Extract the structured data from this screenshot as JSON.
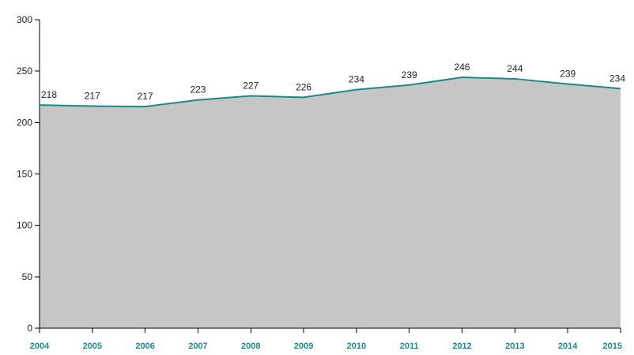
{
  "chart_data": {
    "type": "area",
    "categories": [
      "2004",
      "2005",
      "2006",
      "2007",
      "2008",
      "2009",
      "2010",
      "2011",
      "2012",
      "2013",
      "2014",
      "2015"
    ],
    "series": [
      {
        "values": [
          217,
          216,
          215.5,
          222,
          226,
          224.5,
          232,
          236.5,
          244,
          242.5,
          237.5,
          233
        ],
        "labels": [
          "218",
          "217",
          "217",
          "223",
          "227",
          "226",
          "234",
          "239",
          "246",
          "244",
          "239",
          "234"
        ]
      }
    ],
    "yticks": [
      "0",
      "50",
      "100",
      "150",
      "200",
      "250",
      "300"
    ],
    "ylim": [
      0,
      300
    ],
    "grid": false,
    "colors": {
      "area": "#c6c6c6",
      "line": "#1a8a8a",
      "xtick_label": "#1a8a8a",
      "axis": "#000000"
    }
  }
}
